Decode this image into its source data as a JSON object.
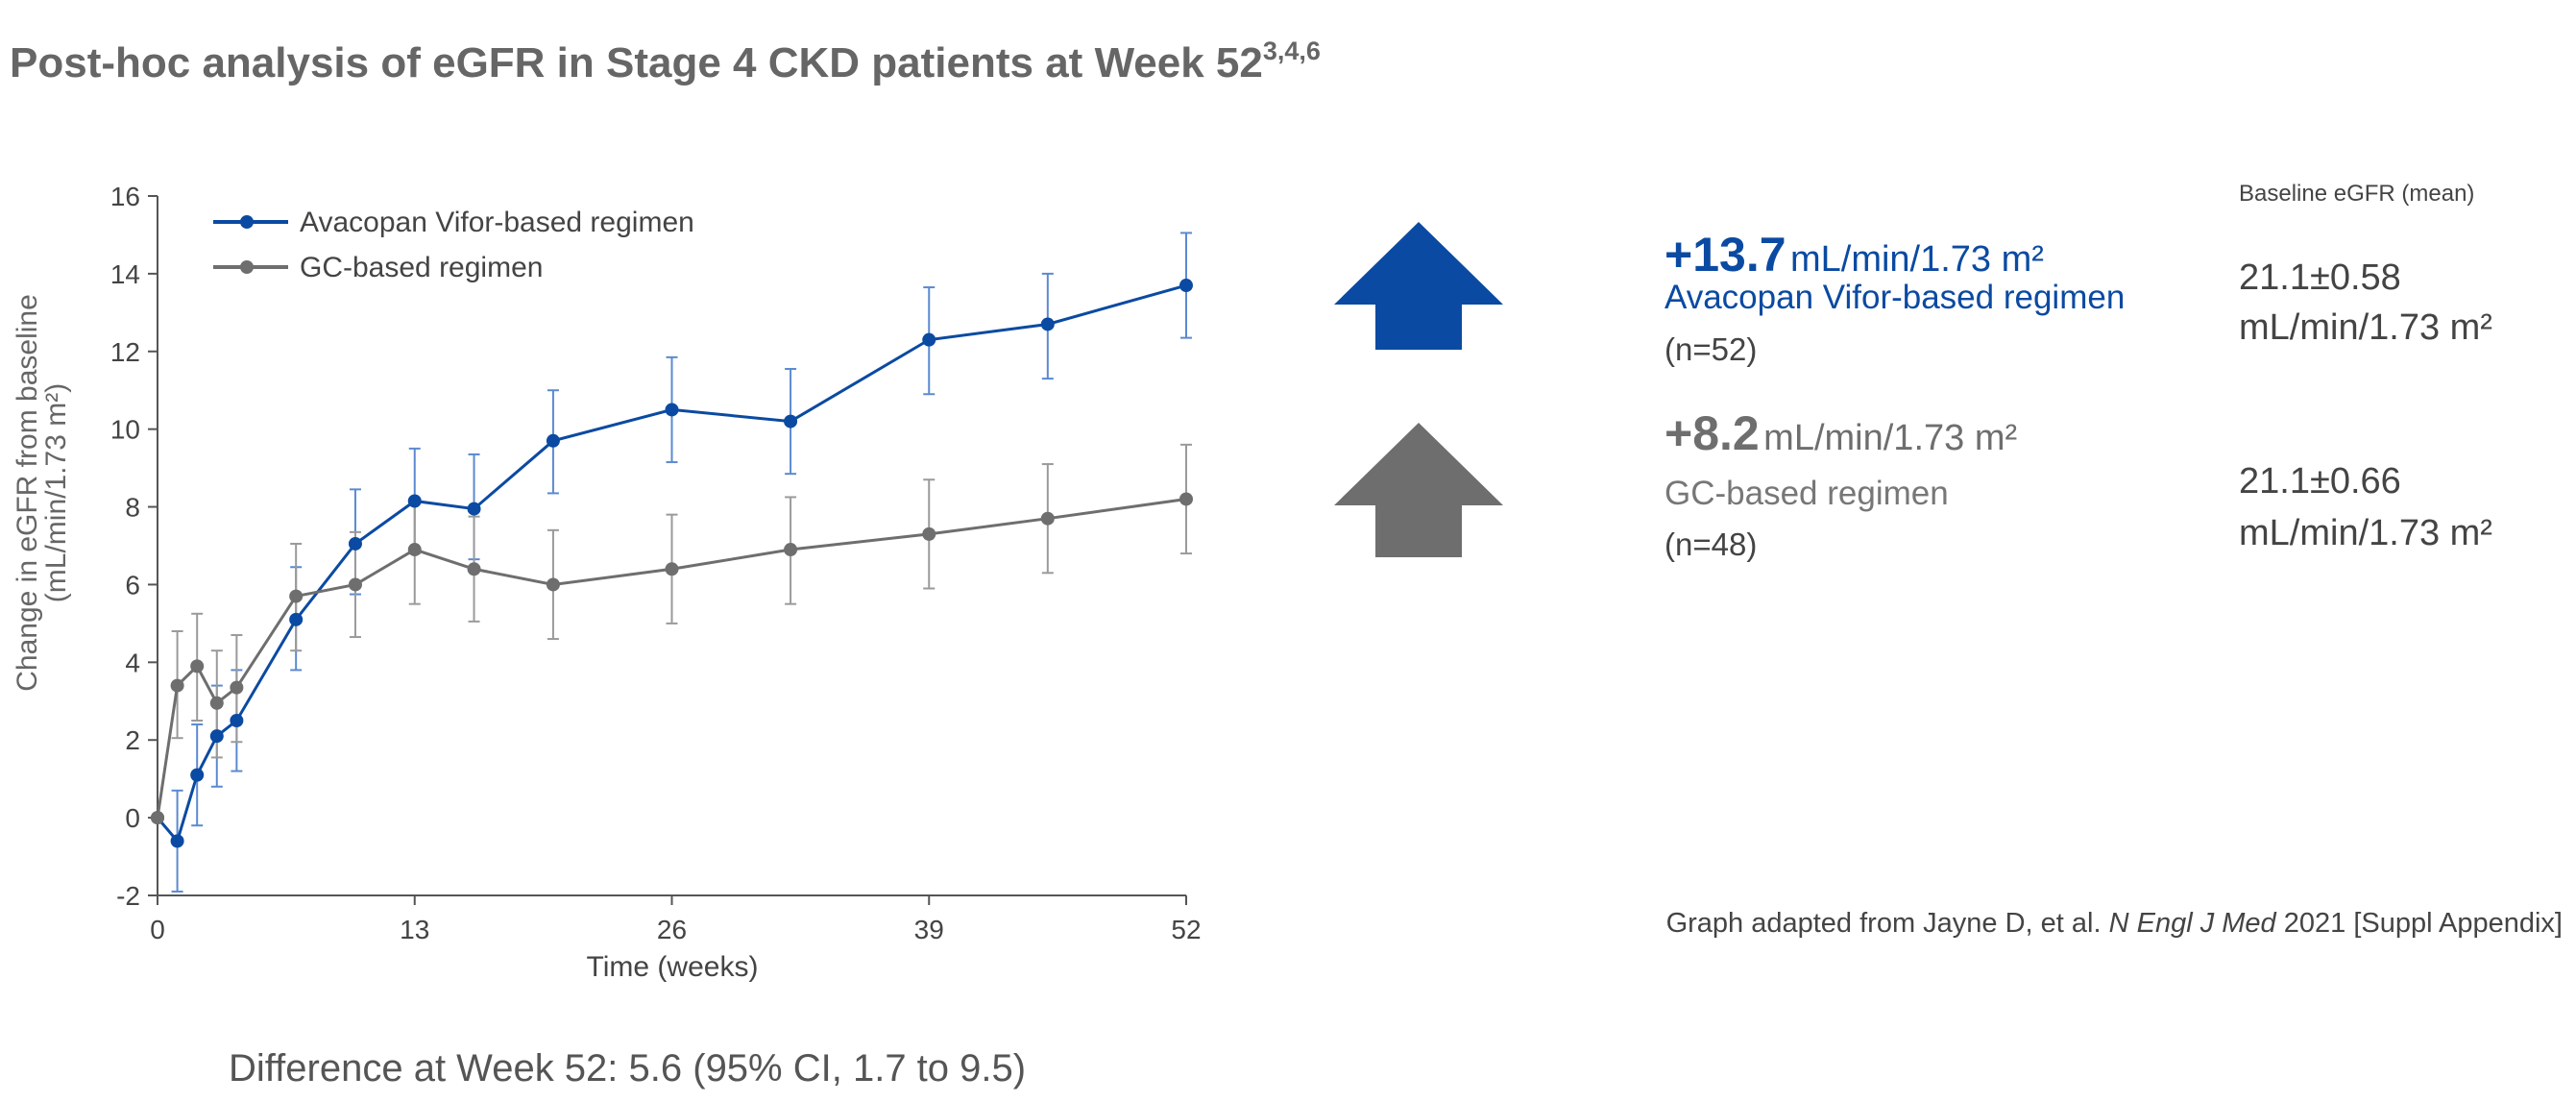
{
  "title": "Post-hoc analysis of eGFR in Stage 4 CKD patients at Week 52",
  "title_refs": "3,4,6",
  "chart_data": {
    "type": "line",
    "title": "Post-hoc analysis of eGFR in Stage 4 CKD patients at Week 52",
    "xlabel": "Time (weeks)",
    "ylabel": "Change in eGFR from baseline",
    "ylabel2": "(mL/min/1.73 m²)",
    "xlim": [
      0,
      52
    ],
    "ylim": [
      -2,
      16
    ],
    "xticks": [
      0,
      13,
      26,
      39,
      52
    ],
    "yticks": [
      -2,
      0,
      2,
      4,
      6,
      8,
      10,
      12,
      14,
      16
    ],
    "grid": false,
    "legend_position": "top-left",
    "x": [
      0,
      1,
      2,
      3,
      4,
      7,
      10,
      13,
      16,
      20,
      26,
      32,
      39,
      45,
      52
    ],
    "series": [
      {
        "name": "Avacopan Vifor-based regimen",
        "color": "#0b4aa2",
        "values": [
          0,
          -0.6,
          1.1,
          2.1,
          2.5,
          5.1,
          7.05,
          8.15,
          7.95,
          9.7,
          10.5,
          10.2,
          12.3,
          12.7,
          13.7
        ],
        "err_low": [
          null,
          -1.9,
          -0.2,
          0.8,
          1.2,
          3.8,
          5.75,
          6.8,
          6.65,
          8.35,
          9.15,
          8.85,
          10.9,
          11.3,
          12.35
        ],
        "err_high": [
          null,
          0.7,
          2.4,
          3.4,
          3.8,
          6.45,
          8.45,
          9.5,
          9.35,
          11.0,
          11.85,
          11.55,
          13.65,
          14.0,
          15.05
        ]
      },
      {
        "name": "GC-based regimen",
        "color": "#6e6e6e",
        "values": [
          0,
          3.4,
          3.9,
          2.95,
          3.35,
          5.7,
          6.0,
          6.9,
          6.4,
          6.0,
          6.4,
          6.9,
          7.3,
          7.7,
          8.2
        ],
        "err_low": [
          null,
          2.05,
          2.5,
          1.55,
          1.95,
          4.3,
          4.65,
          5.5,
          5.05,
          4.6,
          5.0,
          5.5,
          5.9,
          6.3,
          6.8
        ],
        "err_high": [
          null,
          4.8,
          5.25,
          4.3,
          4.7,
          7.05,
          7.35,
          8.2,
          7.75,
          7.4,
          7.8,
          8.25,
          8.7,
          9.1,
          9.6
        ]
      }
    ]
  },
  "summary": {
    "baseline_header": "Baseline eGFR (mean)",
    "groups": [
      {
        "change": "+13.7",
        "unit": "mL/min/1.73 m²",
        "name": "Avacopan Vifor-based regimen",
        "n": "(n=52)",
        "baseline_value": "21.1±0.58",
        "baseline_unit": "mL/min/1.73 m²",
        "color": "#0b4aa2"
      },
      {
        "change": "+8.2",
        "unit": "mL/min/1.73 m²",
        "name": "GC-based regimen",
        "n": "(n=48)",
        "baseline_value": "21.1±0.66",
        "baseline_unit": "mL/min/1.73 m²",
        "color": "#6e6e6e"
      }
    ]
  },
  "footnote_pre": "Graph adapted from Jayne D, et al. ",
  "footnote_journal": "N Engl J Med",
  "footnote_post": " 2021 [Suppl Appendix]",
  "difference": "Difference at Week 52: 5.6 (95% CI, 1.7 to 9.5)"
}
